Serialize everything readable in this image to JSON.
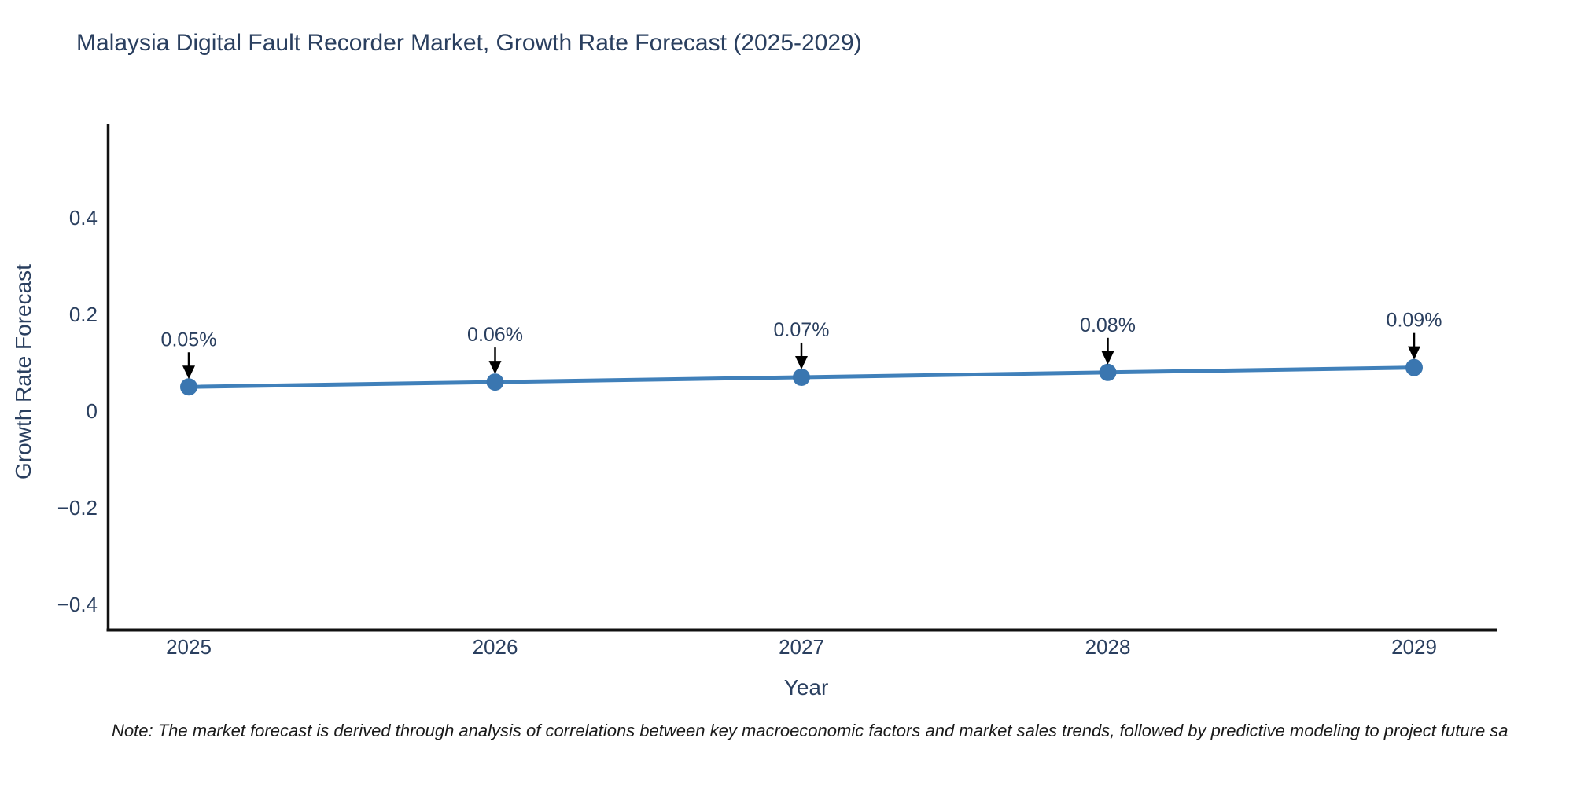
{
  "chart_data": {
    "type": "line",
    "title": "Malaysia Digital Fault Recorder Market, Growth Rate Forecast (2025-2029)",
    "xlabel": "Year",
    "ylabel": "Growth Rate Forecast",
    "categories": [
      "2025",
      "2026",
      "2027",
      "2028",
      "2029"
    ],
    "series": [
      {
        "name": "Growth Rate Forecast",
        "values": [
          0.05,
          0.06,
          0.07,
          0.08,
          0.09
        ]
      }
    ],
    "data_labels": [
      "0.05%",
      "0.06%",
      "0.07%",
      "0.08%",
      "0.09%"
    ],
    "ytick_labels": [
      "0.4",
      "0.2",
      "0",
      "−0.2",
      "−0.4"
    ],
    "ytick_values": [
      0.4,
      0.2,
      0,
      -0.2,
      -0.4
    ],
    "ylim": [
      -0.45,
      0.6
    ],
    "grid": false,
    "legend": false,
    "line_color": "#4080ba",
    "marker_color": "#3a76b0",
    "arrow_color": "#000000",
    "text_color": "#2a3f5f",
    "axis_color": "#111111"
  },
  "note": {
    "text": "Note: The market forecast is derived through analysis of correlations between key macroeconomic factors and market sales trends, followed by predictive modeling to project future sa",
    "color": "#1a1a1a"
  }
}
